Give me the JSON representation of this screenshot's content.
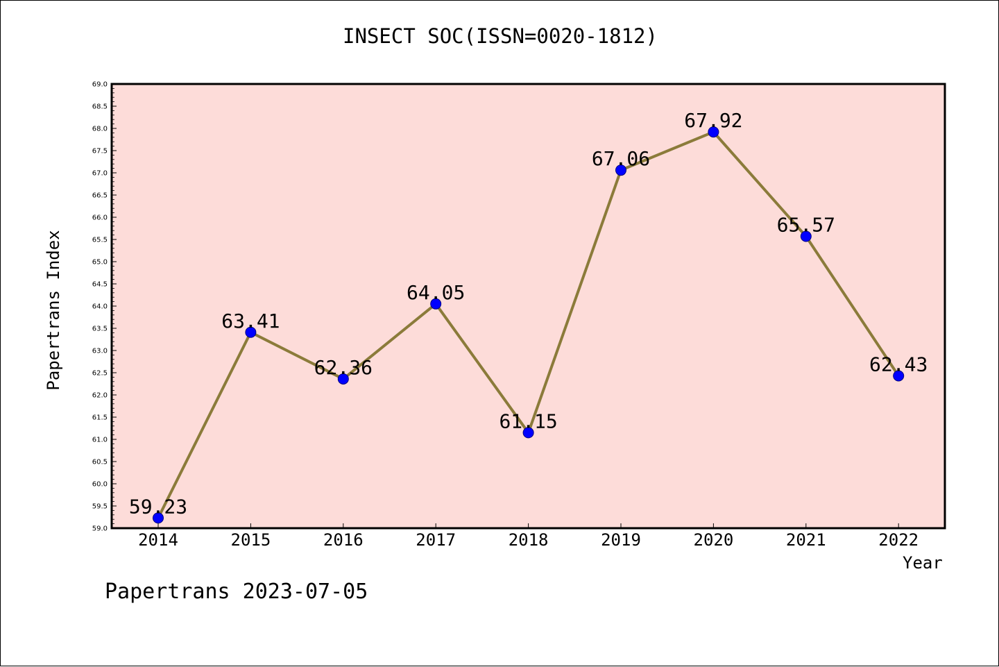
{
  "page": {
    "title": "INSECT SOC(ISSN=0020-1812)",
    "footer": "Papertrans 2023-07-05"
  },
  "chart_data": {
    "type": "line",
    "title": "INSECT SOC(ISSN=0020-1812)",
    "xlabel": "Year",
    "ylabel": "Papertrans Index",
    "categories": [
      "2014",
      "2015",
      "2016",
      "2017",
      "2018",
      "2019",
      "2020",
      "2021",
      "2022"
    ],
    "series": [
      {
        "values": [
          59.23,
          63.41,
          62.36,
          64.05,
          61.15,
          67.06,
          67.92,
          65.57,
          62.43
        ],
        "line_color": "#8b7b3a",
        "marker_color": "#0000ff"
      }
    ],
    "data_labels": [
      "59.23",
      "63.41",
      "62.36",
      "64.05",
      "61.15",
      "67.06",
      "67.92",
      "65.57",
      "62.43"
    ],
    "ylim": [
      59.0,
      69.0
    ],
    "yticks": [
      "59.0",
      "59.5",
      "60.0",
      "60.5",
      "61.0",
      "61.5",
      "62.0",
      "62.5",
      "63.0",
      "63.5",
      "64.0",
      "64.5",
      "65.0",
      "65.5",
      "66.0",
      "66.5",
      "67.0",
      "67.5",
      "68.0",
      "68.5",
      "69.0"
    ],
    "grid": false,
    "legend": "none",
    "plot_background": "#fddcd9"
  }
}
